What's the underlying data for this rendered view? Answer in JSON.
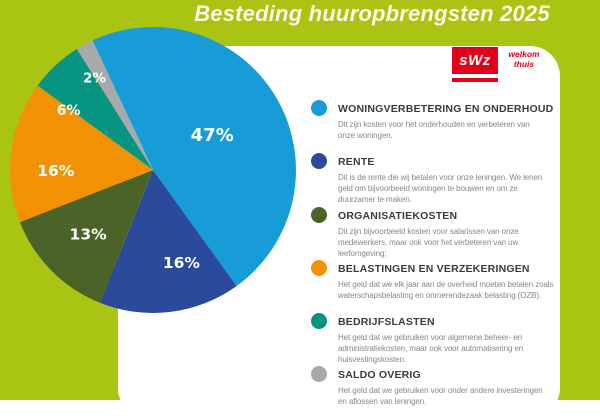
{
  "page": {
    "title": "Besteding huuropbrengsten 2025",
    "background_color": "#a9c413",
    "card_color": "#ffffff"
  },
  "logo": {
    "text": "sWz",
    "tagline_line1": "welkom",
    "tagline_line2": "thuis",
    "color": "#e2001a"
  },
  "chart_data": {
    "type": "pie",
    "title": "Besteding huuropbrengsten 2025",
    "unit": "%",
    "start_angle_deg": -25,
    "legend_position": "right",
    "label_color": "#ffffff",
    "slices": [
      {
        "id": "woningverbetering-en-onderhoud",
        "label": "WONINGVERBETERING EN ONDERHOUD",
        "value": 47,
        "display": "47%",
        "color": "#189cd8"
      },
      {
        "id": "rente",
        "label": "RENTE",
        "value": 16,
        "display": "16%",
        "color": "#2c4a9c"
      },
      {
        "id": "organisatiekosten",
        "label": "ORGANISATIEKOSTEN",
        "value": 13,
        "display": "13%",
        "color": "#4a6327"
      },
      {
        "id": "belastingen-en-verzekeringen",
        "label": "BELASTINGEN EN VERZEKERINGEN",
        "value": 16,
        "display": "16%",
        "color": "#f29104"
      },
      {
        "id": "bedrijfslasten",
        "label": "BEDRIJFSLASTEN",
        "value": 6,
        "display": "6%",
        "color": "#079480"
      },
      {
        "id": "saldo-overig",
        "label": "SALDO OVERIG",
        "value": 2,
        "display": "2%",
        "color": "#a8a9ab"
      }
    ]
  },
  "legend": {
    "items": [
      {
        "title": "WONINGVERBETERING EN ONDERHOUD",
        "description": "Dit zijn kosten voor het onderhouden en verbeteren van\nonze woningen."
      },
      {
        "title": "RENTE",
        "description": "Dit is de rente die wij betalen voor onze leningen. We lenen\ngeld om bijvoorbeeld woningen te bouwen en om ze\nduurzamer te maken."
      },
      {
        "title": "ORGANISATIEKOSTEN",
        "description": "Dit zijn bijvoorbeeld kosten voor salarissen van onze\nmedewerkers, maar ook voor het verbeteren van uw\nleefomgeving;"
      },
      {
        "title": "BELASTINGEN EN VERZEKERINGEN",
        "description": "Het geld dat we elk jaar aan de overheid moeten betalen zoals\nwaterschapsbelasting en onroerendezaak belasting (OZB)."
      },
      {
        "title": "BEDRIJFSLASTEN",
        "description": "Het geld dat we gebruiken voor algemene beheer- en\nadministratiekosten, maar ook voor automatisering en\nhuisvestingskosten."
      },
      {
        "title": "SALDO OVERIG",
        "description": "Het geld dat we gebruiken voor onder andere investeringen\nen aflossen van leningen."
      }
    ]
  }
}
